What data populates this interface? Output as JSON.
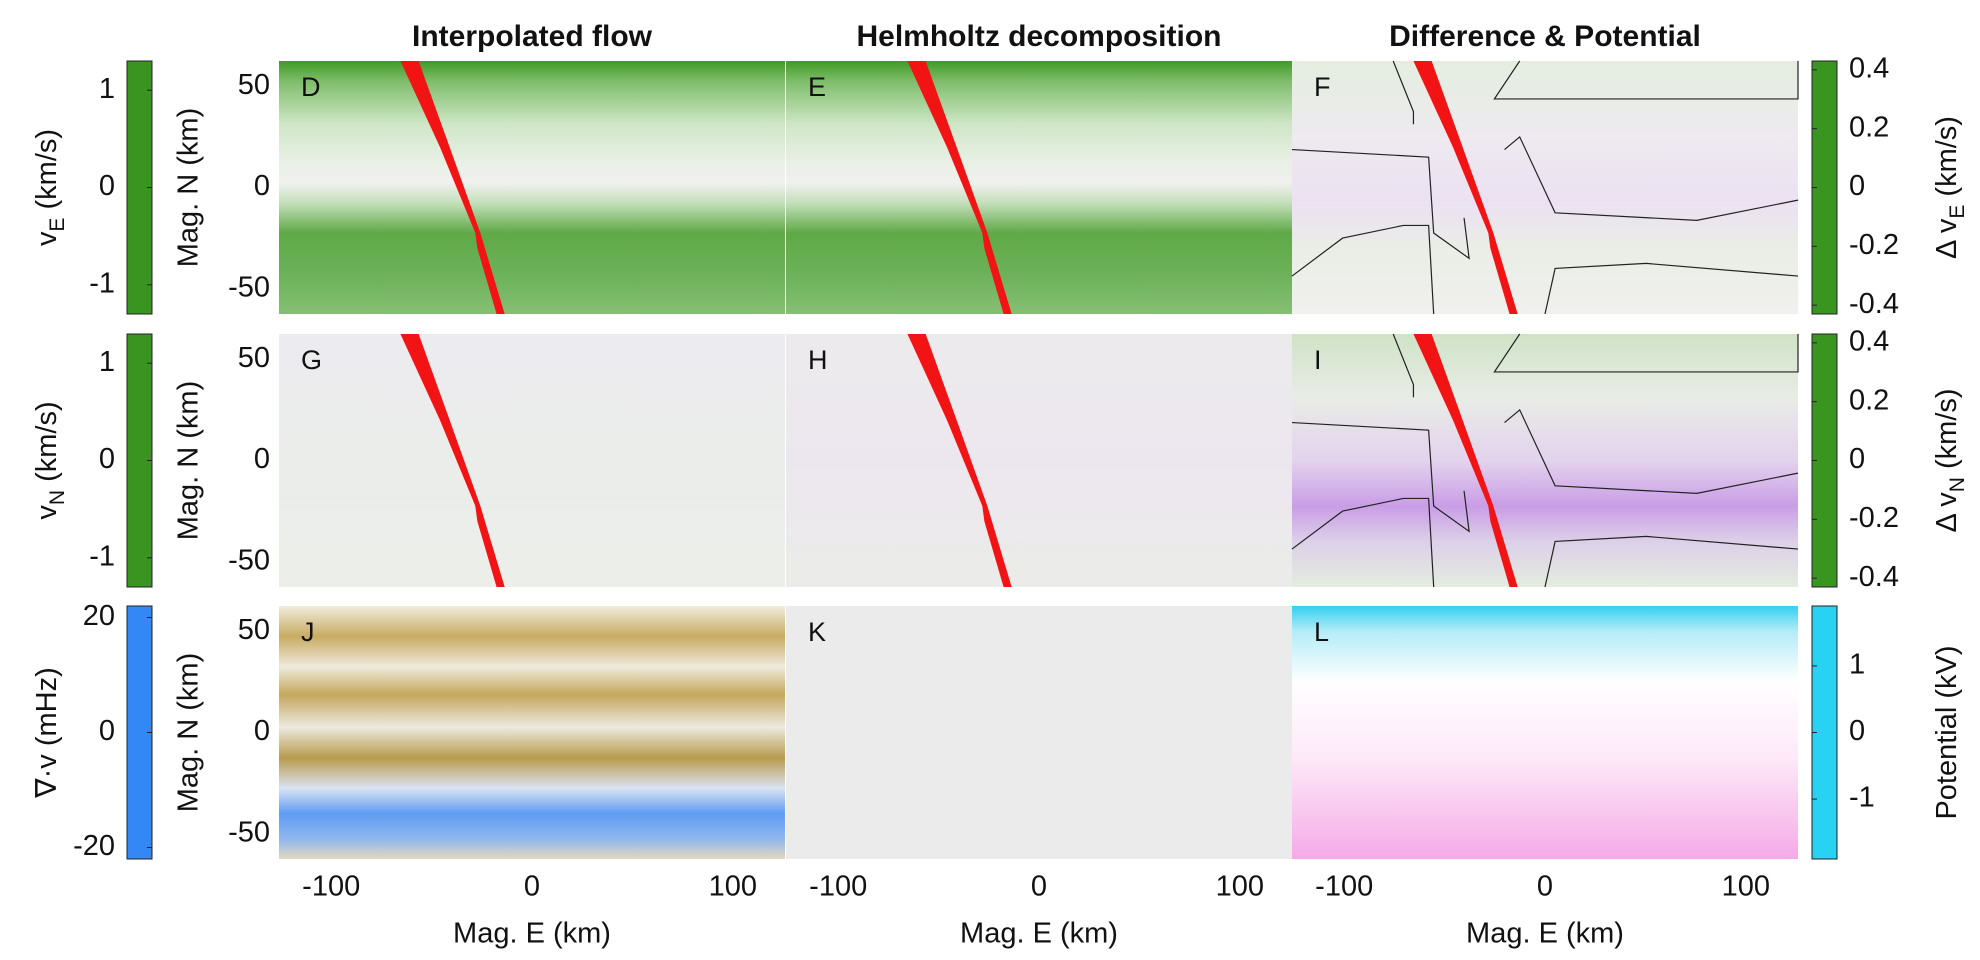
{
  "chart_data": [
    {
      "type": "heatmap",
      "label": "D",
      "title": "Interpolated flow",
      "ylabel": "Mag. N (km)",
      "xlim": [
        -126,
        126
      ],
      "ylim": [
        -62.5,
        62.5
      ],
      "yticks": [
        -50,
        0,
        50
      ],
      "colorbar": {
        "label": [
          "v",
          "E",
          " (km/s)"
        ],
        "lim": [
          -1.3,
          1.3
        ],
        "ticks": [
          -1,
          0,
          1
        ],
        "colors": [
          "#3a9420",
          "#f2f2f2",
          "#b25ee0"
        ]
      }
    },
    {
      "type": "heatmap",
      "label": "E",
      "title": "Helmholtz decomposition",
      "xlim": [
        -126,
        126
      ],
      "ylim": [
        -62.5,
        62.5
      ]
    },
    {
      "type": "heatmap",
      "label": "F",
      "title": "Difference & Potential",
      "xlim": [
        -126,
        126
      ],
      "ylim": [
        -62.5,
        62.5
      ],
      "colorbar": {
        "label": [
          "Δ v",
          "E",
          " (km/s)"
        ],
        "lim": [
          -0.43,
          0.43
        ],
        "ticks": [
          -0.4,
          -0.2,
          0,
          0.2,
          0.4
        ],
        "colors": [
          "#3a9420",
          "#f2f2f2",
          "#b25ee0"
        ]
      }
    },
    {
      "type": "heatmap",
      "label": "G",
      "ylabel": "Mag. N (km)",
      "xlim": [
        -126,
        126
      ],
      "ylim": [
        -62.5,
        62.5
      ],
      "yticks": [
        -50,
        0,
        50
      ],
      "colorbar": {
        "label": [
          "v",
          "N",
          " (km/s)"
        ],
        "lim": [
          -1.3,
          1.3
        ],
        "ticks": [
          -1,
          0,
          1
        ],
        "colors": [
          "#3a9420",
          "#f2f2f2",
          "#b25ee0"
        ]
      }
    },
    {
      "type": "heatmap",
      "label": "H",
      "xlim": [
        -126,
        126
      ],
      "ylim": [
        -62.5,
        62.5
      ]
    },
    {
      "type": "heatmap",
      "label": "I",
      "xlim": [
        -126,
        126
      ],
      "ylim": [
        -62.5,
        62.5
      ],
      "colorbar": {
        "label": [
          "Δ v",
          "N",
          " (km/s)"
        ],
        "lim": [
          -0.43,
          0.43
        ],
        "ticks": [
          -0.4,
          -0.2,
          0,
          0.2,
          0.4
        ],
        "colors": [
          "#3a9420",
          "#f2f2f2",
          "#b25ee0"
        ]
      }
    },
    {
      "type": "heatmap",
      "label": "J",
      "ylabel": "Mag. N (km)",
      "xlabel": "Mag. E (km)",
      "xlim": [
        -126,
        126
      ],
      "ylim": [
        -62.5,
        62.5
      ],
      "yticks": [
        -50,
        0,
        50
      ],
      "xticks": [
        -100,
        0,
        100
      ],
      "colorbar": {
        "label": [
          "∇·v (mHz)"
        ],
        "lim": [
          -22,
          22
        ],
        "ticks": [
          -20,
          0,
          20
        ],
        "colors": [
          "#3388f5",
          "#f2f2f2",
          "#a8893a"
        ]
      }
    },
    {
      "type": "heatmap",
      "label": "K",
      "xlabel": "Mag. E (km)",
      "xlim": [
        -126,
        126
      ],
      "ylim": [
        -62.5,
        62.5
      ],
      "xticks": [
        -100,
        0,
        100
      ]
    },
    {
      "type": "heatmap",
      "label": "L",
      "xlabel": "Mag. E (km)",
      "xlim": [
        -126,
        126
      ],
      "ylim": [
        -62.5,
        62.5
      ],
      "xticks": [
        -100,
        0,
        100
      ],
      "colorbar": {
        "label": [
          "Potential (kV)"
        ],
        "lim": [
          -1.9,
          1.9
        ],
        "ticks": [
          -1,
          0,
          1
        ],
        "colors": [
          "#28d2f2",
          "#ffffff",
          "#f7a6e8"
        ]
      }
    }
  ]
}
